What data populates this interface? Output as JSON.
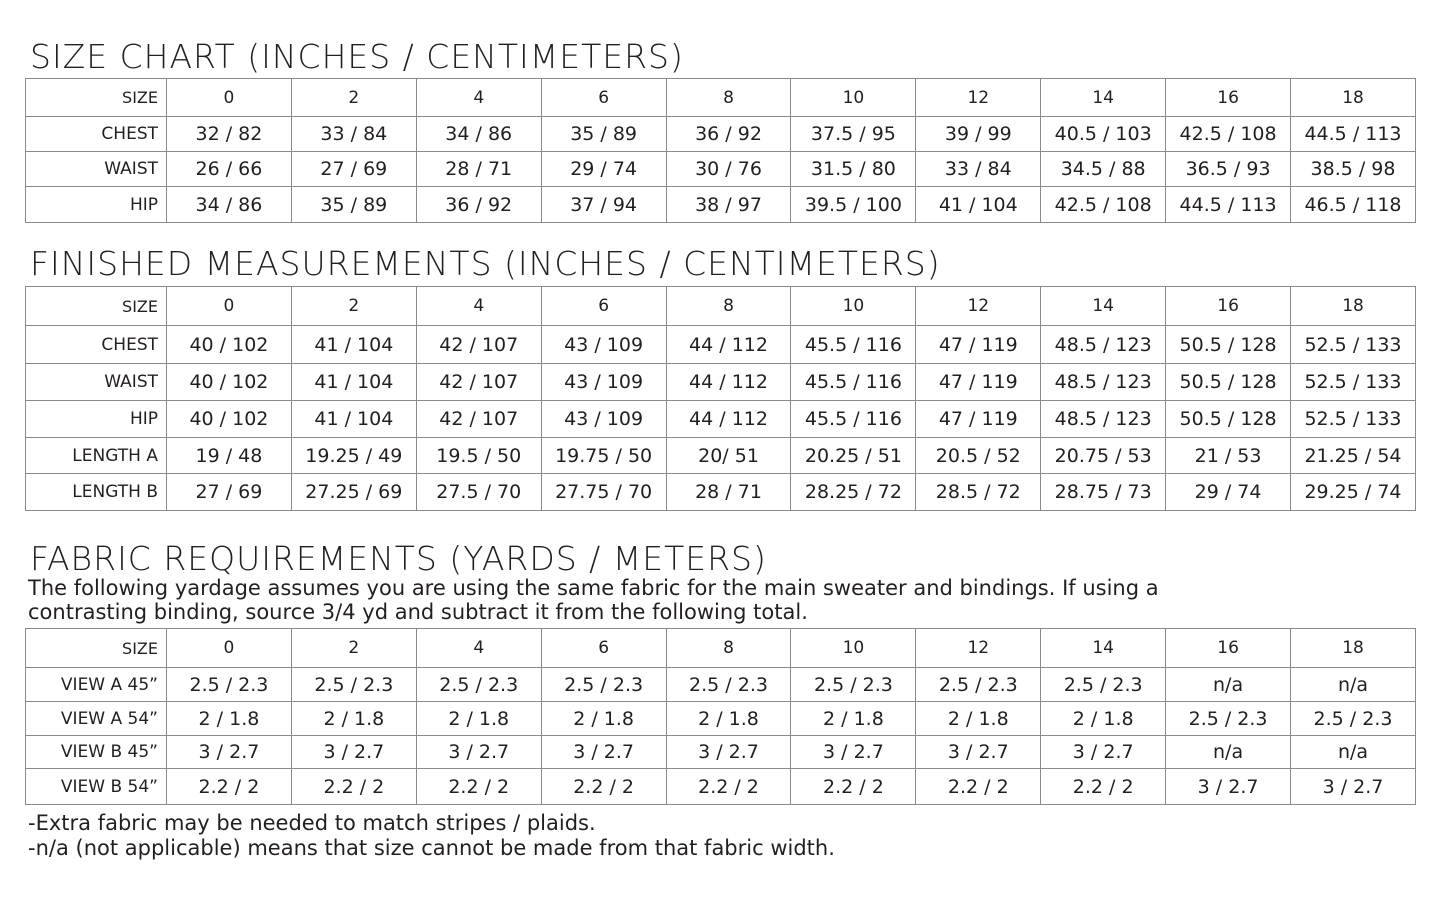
{
  "size_chart": {
    "title": "SIZE CHART (INCHES / CENTIMETERS)",
    "header": [
      "SIZE",
      "0",
      "2",
      "4",
      "6",
      "8",
      "10",
      "12",
      "14",
      "16",
      "18"
    ],
    "rows": [
      [
        "CHEST",
        "32 / 82",
        "33 / 84",
        "34 / 86",
        "35 / 89",
        "36 / 92",
        "37.5 / 95",
        "39 / 99",
        "40.5 / 103",
        "42.5 / 108",
        "44.5 / 113"
      ],
      [
        "WAIST",
        "26 / 66",
        "27 / 69",
        "28 / 71",
        "29 / 74",
        "30 / 76",
        "31.5 / 80",
        "33 / 84",
        "34.5 / 88",
        "36.5 / 93",
        "38.5 / 98"
      ],
      [
        "HIP",
        "34 / 86",
        "35 / 89",
        "36 / 92",
        "37 / 94",
        "38 / 97",
        "39.5 / 100",
        "41 / 104",
        "42.5 / 108",
        "44.5 / 113",
        "46.5 / 118"
      ]
    ]
  },
  "finished": {
    "title": "FINISHED MEASUREMENTS (INCHES / CENTIMETERS)",
    "header": [
      "SIZE",
      "0",
      "2",
      "4",
      "6",
      "8",
      "10",
      "12",
      "14",
      "16",
      "18"
    ],
    "rows": [
      [
        "CHEST",
        "40 / 102",
        "41 / 104",
        "42 / 107",
        "43 / 109",
        "44 / 112",
        "45.5 / 116",
        "47 / 119",
        "48.5 / 123",
        "50.5 / 128",
        "52.5 / 133"
      ],
      [
        "WAIST",
        "40 / 102",
        "41 / 104",
        "42 / 107",
        "43 / 109",
        "44 / 112",
        "45.5 / 116",
        "47 / 119",
        "48.5 / 123",
        "50.5 / 128",
        "52.5 / 133"
      ],
      [
        "HIP",
        "40 / 102",
        "41 / 104",
        "42 / 107",
        "43 / 109",
        "44 / 112",
        "45.5 / 116",
        "47 / 119",
        "48.5 / 123",
        "50.5 / 128",
        "52.5 / 133"
      ],
      [
        "LENGTH A",
        "19 / 48",
        "19.25 / 49",
        "19.5 / 50",
        "19.75 / 50",
        "20/ 51",
        "20.25 / 51",
        "20.5 / 52",
        "20.75 / 53",
        "21 / 53",
        "21.25 / 54"
      ],
      [
        "LENGTH B",
        "27 / 69",
        "27.25 / 69",
        "27.5 / 70",
        "27.75 / 70",
        "28 / 71",
        "28.25 / 72",
        "28.5 / 72",
        "28.75 / 73",
        "29 / 74",
        "29.25 / 74"
      ]
    ]
  },
  "fabric": {
    "title": "FABRIC REQUIREMENTS (YARDS / METERS)",
    "intro_line1": "The following yardage assumes you are using the same fabric for the main sweater and bindings. If using a",
    "intro_line2": "contrasting binding, source 3/4 yd and subtract it from the following total.",
    "header": [
      "SIZE",
      "0",
      "2",
      "4",
      "6",
      "8",
      "10",
      "12",
      "14",
      "16",
      "18"
    ],
    "rows": [
      [
        "VIEW A  45”",
        "2.5 / 2.3",
        "2.5 / 2.3",
        "2.5 / 2.3",
        "2.5 / 2.3",
        "2.5 / 2.3",
        "2.5 / 2.3",
        "2.5 / 2.3",
        "2.5 / 2.3",
        "n/a",
        "n/a"
      ],
      [
        "VIEW A  54”",
        "2 / 1.8",
        "2 / 1.8",
        "2 / 1.8",
        "2 / 1.8",
        "2 / 1.8",
        "2 / 1.8",
        "2 / 1.8",
        "2 / 1.8",
        "2.5 / 2.3",
        "2.5 / 2.3"
      ],
      [
        "VIEW B 45”",
        "3 / 2.7",
        "3 / 2.7",
        "3 / 2.7",
        "3 / 2.7",
        "3 / 2.7",
        "3 / 2.7",
        "3 / 2.7",
        "3 / 2.7",
        "n/a",
        "n/a"
      ],
      [
        "VIEW B 54”",
        "2.2 / 2",
        "2.2 / 2",
        "2.2 / 2",
        "2.2 / 2",
        "2.2 / 2",
        "2.2 / 2",
        "2.2 / 2",
        "2.2 / 2",
        "3 / 2.7",
        "3 / 2.7"
      ]
    ],
    "note1": "-Extra fabric may be needed to match stripes / plaids.",
    "note2": "-n/a (not applicable) means that size cannot be made from that fabric width."
  }
}
